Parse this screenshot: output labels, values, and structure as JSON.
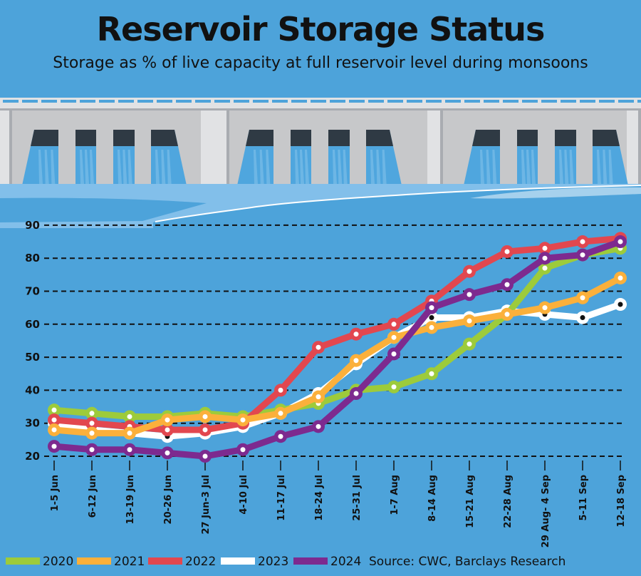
{
  "chart_data": {
    "type": "line",
    "title": "Reservoir Storage Status",
    "subtitle": "Storage as % of live capacity at full reservoir level during monsoons",
    "xlabel": "",
    "ylabel": "",
    "ylim": [
      20,
      90
    ],
    "yticks": [
      20,
      30,
      40,
      50,
      60,
      70,
      80,
      90
    ],
    "grid": true,
    "legend_placement": "bottom",
    "categories": [
      "1-5 Jun",
      "6-12 Jun",
      "13-19 Jun",
      "20-26 Jun",
      "27 Jun-3 Jul",
      "4-10 Jul",
      "11-17 Jul",
      "18-24 Jul",
      "25-31 Jul",
      "1-7 Aug",
      "8-14 Aug",
      "15-21 Aug",
      "22-28 Aug",
      "29 Aug- 4 Sep",
      "5-11 Sep",
      "12-18 Sep"
    ],
    "series": [
      {
        "name": "2023",
        "color": "#ffffff",
        "values": [
          30,
          28,
          27,
          26,
          27,
          29,
          33,
          39,
          48,
          56,
          62,
          62,
          64,
          63,
          62,
          66
        ]
      },
      {
        "name": "2020",
        "color": "#9dcb3b",
        "values": [
          34,
          33,
          32,
          32,
          33,
          32,
          34,
          36,
          40,
          41,
          45,
          54,
          63,
          77,
          81,
          83
        ]
      },
      {
        "name": "2022",
        "color": "#e2474f",
        "values": [
          31,
          30,
          29,
          28,
          28,
          30,
          40,
          53,
          57,
          60,
          67,
          76,
          82,
          83,
          85,
          86
        ]
      },
      {
        "name": "2021",
        "color": "#fbb03b",
        "values": [
          28,
          27,
          27,
          31,
          32,
          31,
          33,
          38,
          49,
          56,
          59,
          61,
          63,
          65,
          68,
          74
        ]
      },
      {
        "name": "2024",
        "color": "#7d2a8f",
        "values": [
          23,
          22,
          22,
          21,
          20,
          22,
          26,
          29,
          39,
          51,
          65,
          69,
          72,
          80,
          81,
          85
        ]
      }
    ],
    "legend_order": [
      "2020",
      "2021",
      "2022",
      "2023",
      "2024"
    ],
    "source": "Source: CWC, Barclays Research"
  }
}
